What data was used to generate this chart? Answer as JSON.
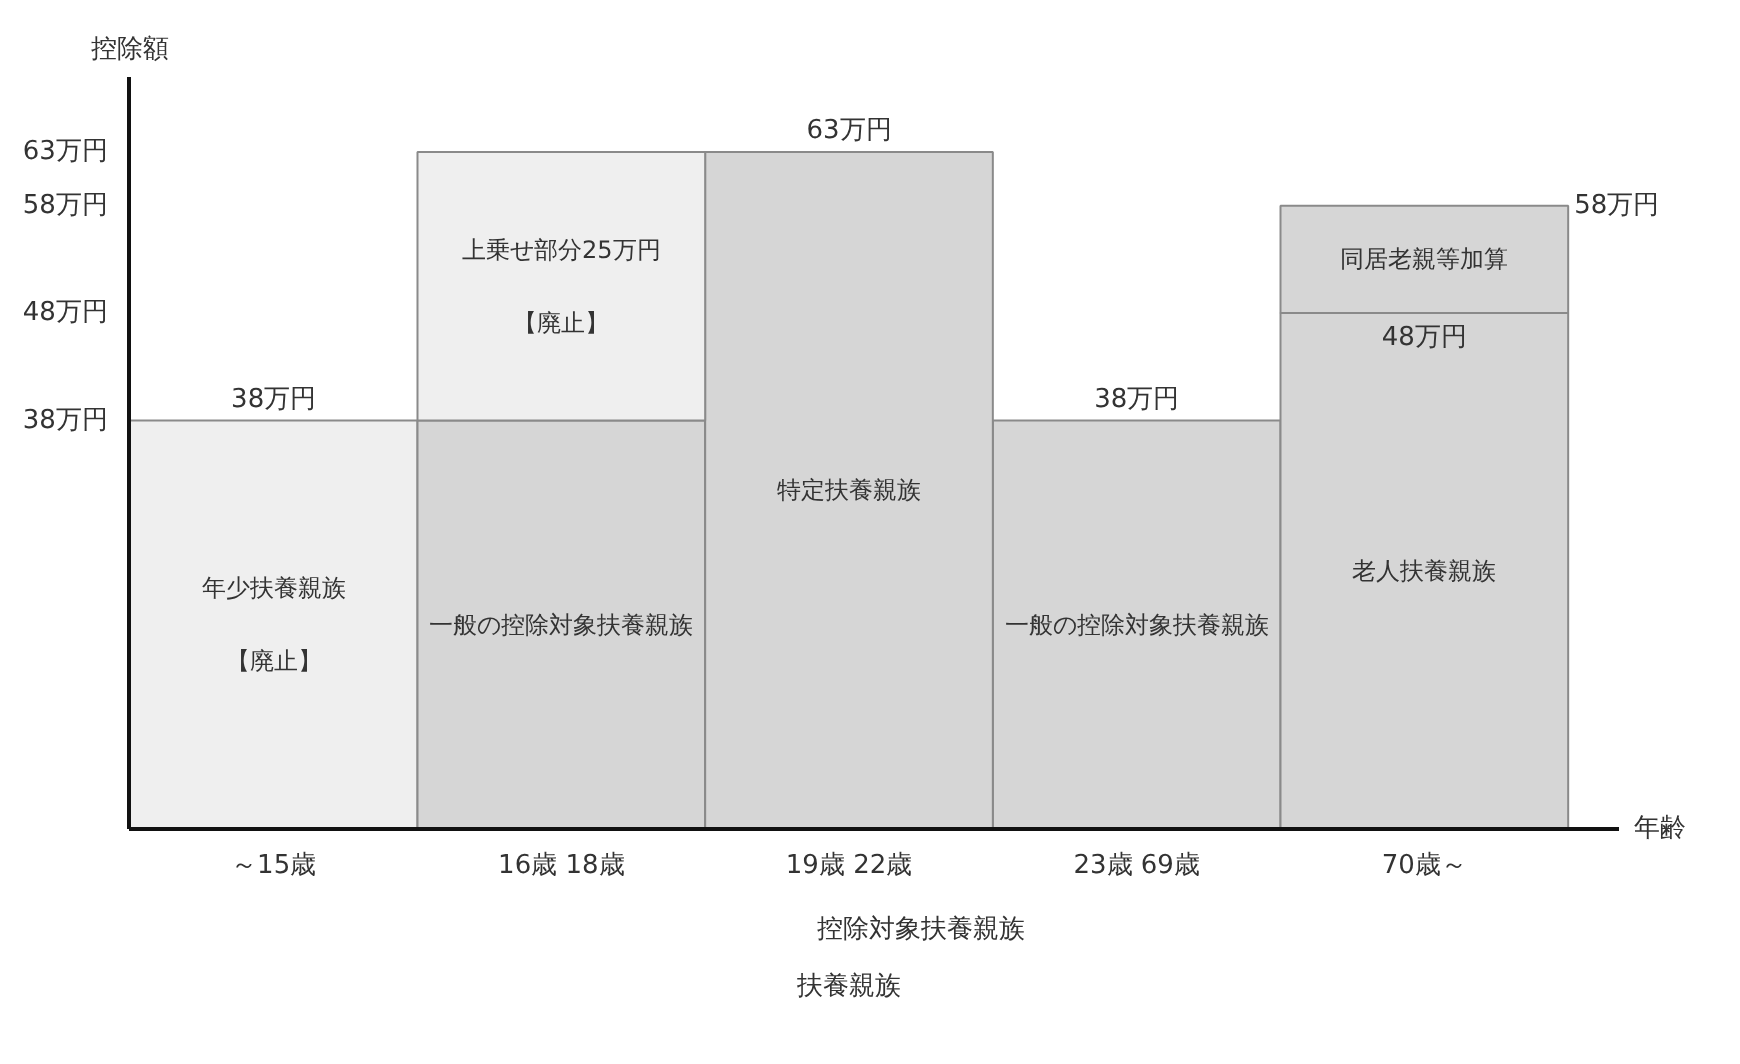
{
  "chart_data": {
    "type": "bar",
    "stacked": true,
    "xlabel": "年齢",
    "ylabel": "控除額",
    "categories": [
      "～15歳",
      "16歳 18歳",
      "19歳 22歳",
      "23歳 69歳",
      "70歳～"
    ],
    "series": [
      {
        "name": "年少扶養親族【廃止】",
        "color": "#efefef",
        "values": [
          38,
          null,
          null,
          null,
          null
        ],
        "value_labels": [
          "38万円",
          null,
          null,
          null,
          null
        ]
      },
      {
        "name": "一般の控除対象扶養親族",
        "color": "#d6d6d6",
        "values": [
          null,
          38,
          null,
          38,
          null
        ],
        "value_labels": [
          null,
          null,
          null,
          "38万円",
          null
        ]
      },
      {
        "name": "特定扶養親族",
        "color": "#d6d6d6",
        "values": [
          null,
          null,
          63,
          null,
          null
        ],
        "value_labels": [
          null,
          null,
          "63万円",
          null,
          null
        ]
      },
      {
        "name": "老人扶養親族",
        "color": "#d6d6d6",
        "values": [
          null,
          null,
          null,
          null,
          48
        ],
        "value_labels": [
          null,
          null,
          null,
          null,
          "48万円"
        ]
      },
      {
        "name": "上乗せ部分25万円【廃止】",
        "color": "#efefef",
        "values": [
          null,
          25,
          null,
          null,
          null
        ]
      },
      {
        "name": "同居老親等加算",
        "color": "#d6d6d6",
        "values": [
          null,
          null,
          null,
          null,
          10
        ]
      }
    ],
    "totals": [
      null,
      null,
      null,
      null,
      "58万円"
    ],
    "ylim": [
      0,
      70
    ],
    "yticks": [
      {
        "value": 38,
        "label": "38万円"
      },
      {
        "value": 48,
        "label": "48万円"
      },
      {
        "value": 58,
        "label": "58万円"
      },
      {
        "value": 63,
        "label": "63万円"
      }
    ],
    "annotations": [
      "控除対象扶養親族",
      "扶養親族"
    ]
  }
}
